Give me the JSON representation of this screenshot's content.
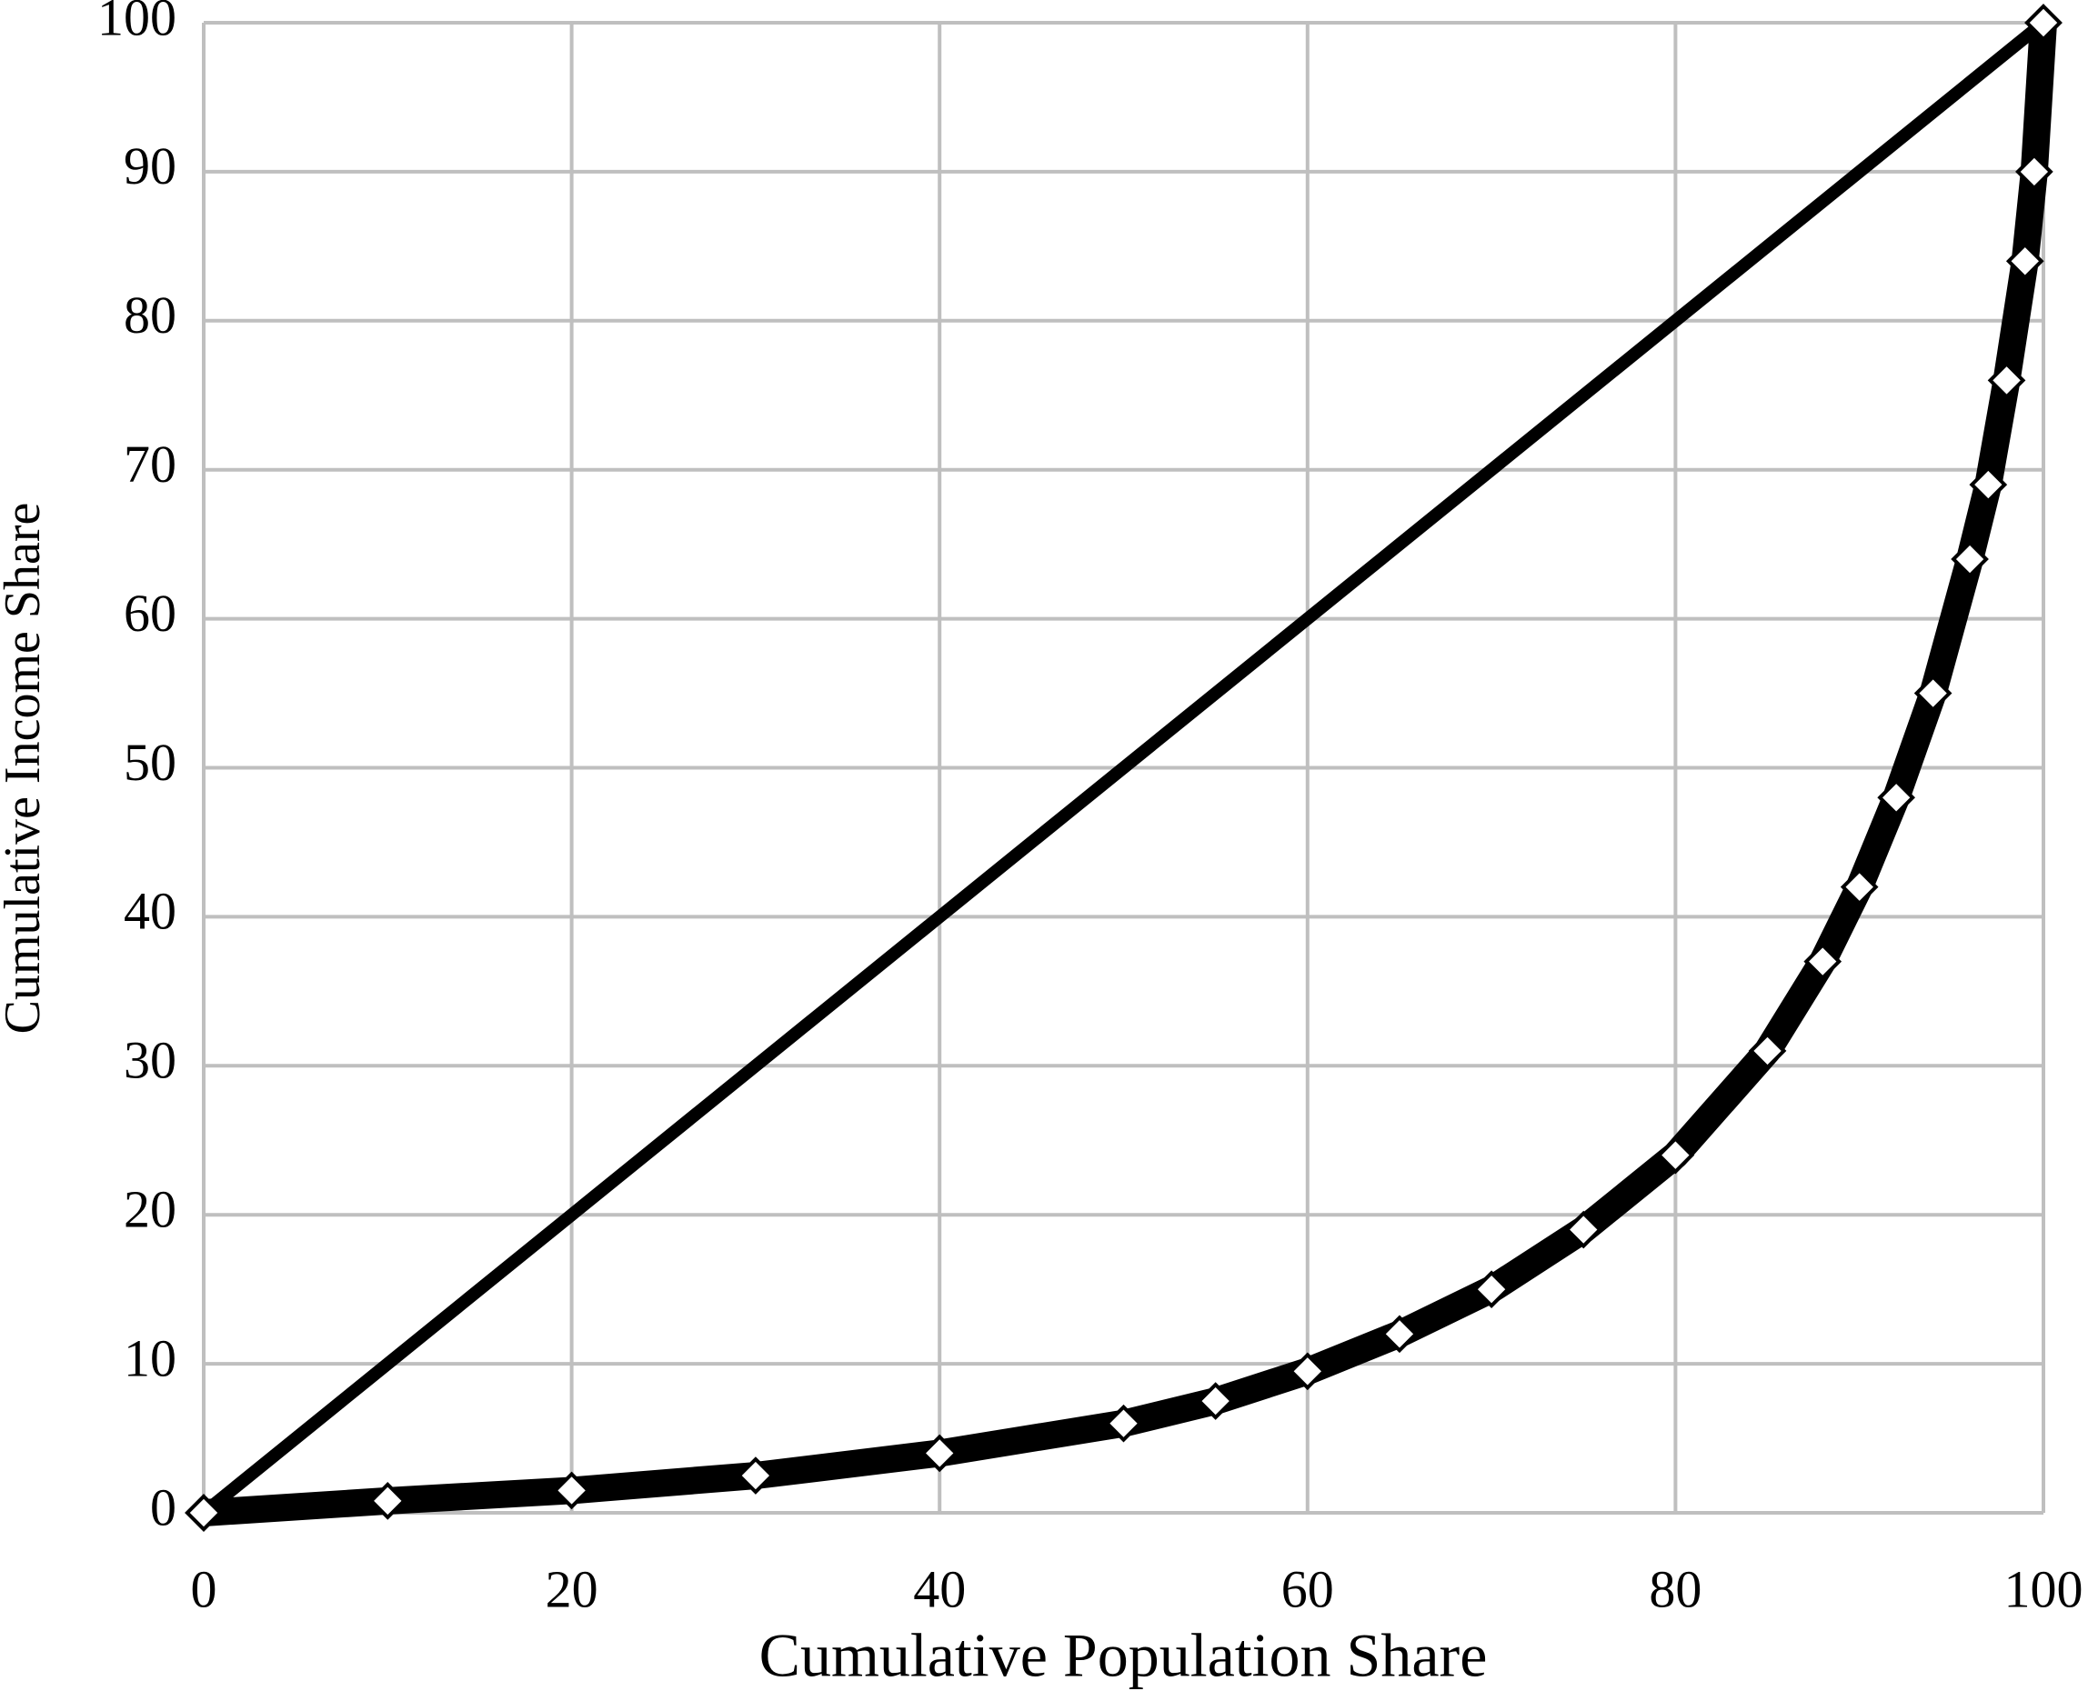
{
  "chart_data": {
    "type": "scatter",
    "xlabel": "Cumulative Population Share",
    "ylabel": "Cumulative Income Share",
    "xlim": [
      0,
      100
    ],
    "xticks": [
      0,
      20,
      40,
      60,
      80,
      100
    ],
    "ylim": [
      0,
      100
    ],
    "yticks": [
      0,
      10,
      20,
      30,
      40,
      50,
      60,
      70,
      80,
      90,
      100
    ],
    "grid": true,
    "marker": "diamond",
    "series": [
      {
        "color": "#000000",
        "x": [
          0,
          100
        ],
        "values": [
          0,
          100
        ]
      },
      {
        "color": "#000000",
        "x": [
          0,
          10,
          20,
          30,
          40,
          50,
          55,
          60,
          65,
          70,
          75,
          80,
          85,
          88,
          90,
          92,
          94,
          96,
          97,
          98,
          99,
          99.5,
          100
        ],
        "values": [
          0,
          0.8,
          1.5,
          2.5,
          4,
          6,
          7.5,
          9.5,
          12,
          15,
          19,
          24,
          31,
          37,
          42,
          48,
          55,
          64,
          69,
          76,
          84,
          90,
          100
        ]
      }
    ]
  }
}
